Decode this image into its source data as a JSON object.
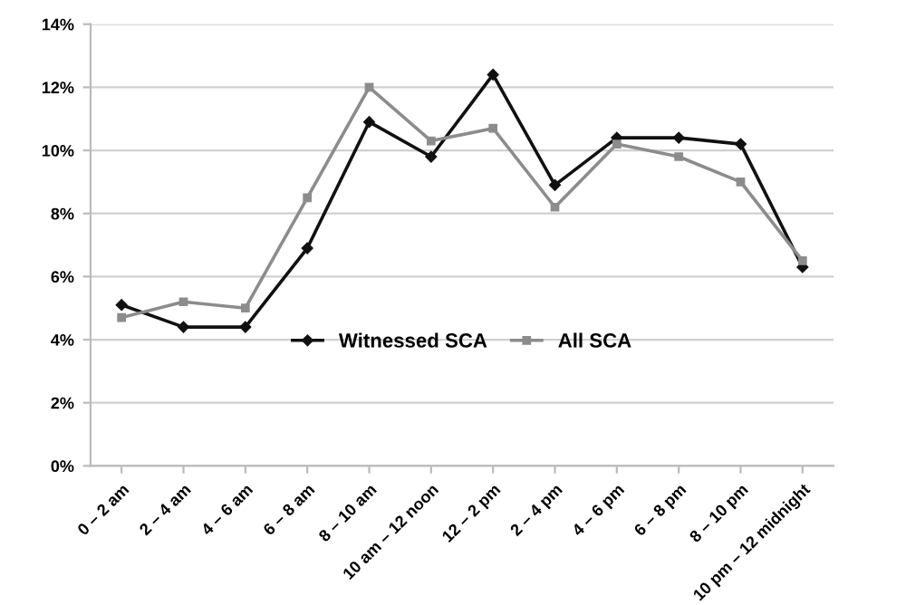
{
  "chart_data": {
    "type": "line",
    "categories": [
      "0 – 2 am",
      "2 – 4 am",
      "4 – 6 am",
      "6 – 8 am",
      "8 – 10 am",
      "10 am – 12 noon",
      "12 – 2 pm",
      "2 – 4 pm",
      "4 – 6 pm",
      "6 – 8 pm",
      "8 – 10 pm",
      "10 pm – 12 midnight"
    ],
    "series": [
      {
        "name": "Witnessed SCA",
        "color": "#111111",
        "marker": "diamond",
        "values": [
          5.1,
          4.4,
          4.4,
          6.9,
          10.9,
          9.8,
          12.4,
          8.9,
          10.4,
          10.4,
          10.2,
          6.3
        ]
      },
      {
        "name": "All SCA",
        "color": "#8c8c8c",
        "marker": "square",
        "values": [
          4.7,
          5.2,
          5.0,
          8.5,
          12.0,
          10.3,
          10.7,
          8.2,
          10.2,
          9.8,
          9.0,
          6.5
        ]
      }
    ],
    "ylim": [
      0,
      14
    ],
    "yticks": [
      {
        "value": 0,
        "label": "0%"
      },
      {
        "value": 2,
        "label": "2%"
      },
      {
        "value": 4,
        "label": "4%"
      },
      {
        "value": 6,
        "label": "6%"
      },
      {
        "value": 8,
        "label": "8%"
      },
      {
        "value": 10,
        "label": "10%"
      },
      {
        "value": 12,
        "label": "12%"
      },
      {
        "value": 14,
        "label": "14%"
      }
    ],
    "grid": "y",
    "legend": "center",
    "line_style": "solid"
  }
}
